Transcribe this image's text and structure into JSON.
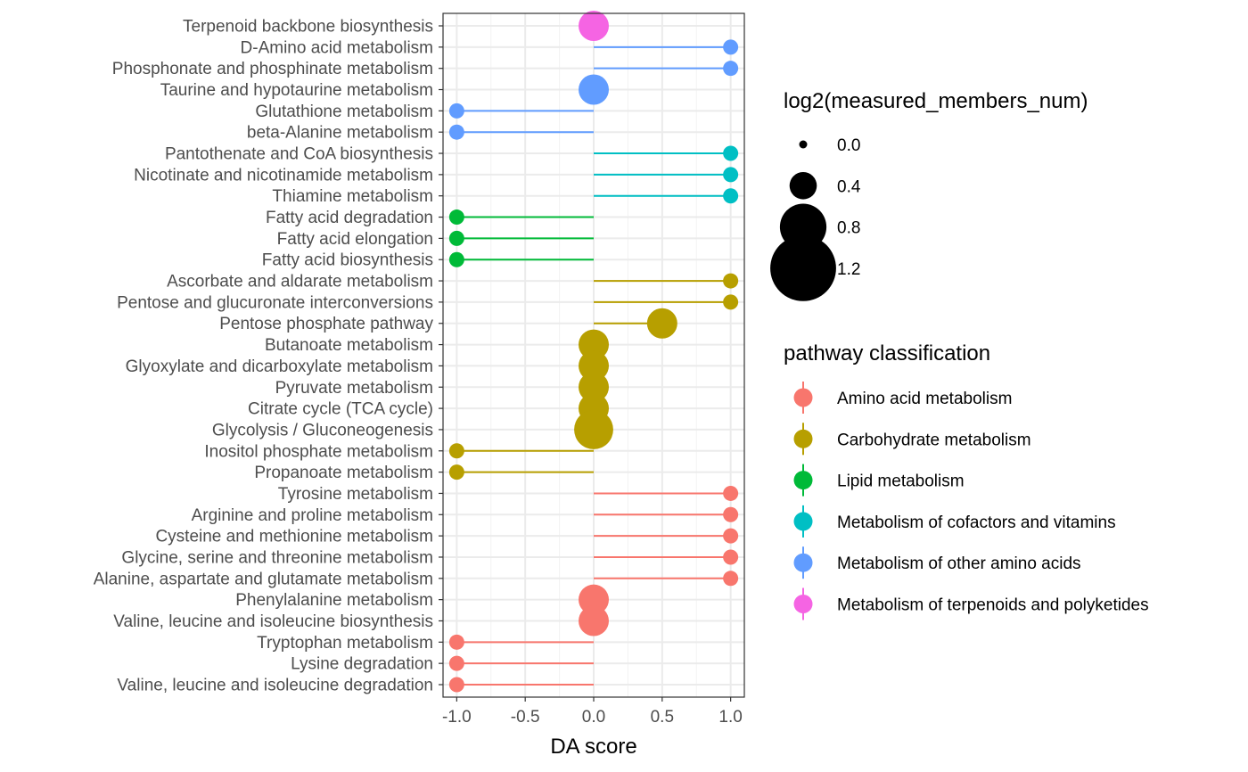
{
  "chart_data": {
    "type": "scatter",
    "subtype": "lollipop",
    "xlabel": "DA score",
    "ylabel": "",
    "xlim": [
      -1.1,
      1.1
    ],
    "x_ticks": [
      "-1.0",
      "-0.5",
      "0.0",
      "0.5",
      "1.0"
    ],
    "grid": true,
    "legend_position": "right",
    "categories": [
      "Terpenoid backbone biosynthesis",
      "D-Amino acid metabolism",
      "Phosphonate and phosphinate metabolism",
      "Taurine and hypotaurine metabolism",
      "Glutathione metabolism",
      "beta-Alanine metabolism",
      "Pantothenate and CoA biosynthesis",
      "Nicotinate and nicotinamide metabolism",
      "Thiamine metabolism",
      "Fatty acid degradation",
      "Fatty acid elongation",
      "Fatty acid biosynthesis",
      "Ascorbate and aldarate metabolism",
      "Pentose and glucuronate interconversions",
      "Pentose phosphate pathway",
      "Butanoate metabolism",
      "Glyoxylate and dicarboxylate metabolism",
      "Pyruvate metabolism",
      "Citrate cycle (TCA cycle)",
      "Glycolysis / Gluconeogenesis",
      "Inositol phosphate metabolism",
      "Propanoate metabolism",
      "Tyrosine metabolism",
      "Arginine and proline metabolism",
      "Cysteine and methionine metabolism",
      "Glycine, serine and threonine metabolism",
      "Alanine, aspartate and glutamate metabolism",
      "Phenylalanine metabolism",
      "Valine, leucine and isoleucine biosynthesis",
      "Tryptophan metabolism",
      "Lysine degradation",
      "Valine, leucine and isoleucine degradation"
    ],
    "points": [
      {
        "pathway": "Terpenoid backbone biosynthesis",
        "score": 0.0,
        "size": 1.0,
        "class": "Metabolism of terpenoids and polyketides"
      },
      {
        "pathway": "D-Amino acid metabolism",
        "score": 1.0,
        "size": 0.0,
        "class": "Metabolism of other amino acids"
      },
      {
        "pathway": "Phosphonate and phosphinate metabolism",
        "score": 1.0,
        "size": 0.0,
        "class": "Metabolism of other amino acids"
      },
      {
        "pathway": "Taurine and hypotaurine metabolism",
        "score": 0.0,
        "size": 1.0,
        "class": "Metabolism of other amino acids"
      },
      {
        "pathway": "Glutathione metabolism",
        "score": -1.0,
        "size": 0.0,
        "class": "Metabolism of other amino acids"
      },
      {
        "pathway": "beta-Alanine metabolism",
        "score": -1.0,
        "size": 0.0,
        "class": "Metabolism of other amino acids"
      },
      {
        "pathway": "Pantothenate and CoA biosynthesis",
        "score": 1.0,
        "size": 0.0,
        "class": "Metabolism of cofactors and vitamins"
      },
      {
        "pathway": "Nicotinate and nicotinamide metabolism",
        "score": 1.0,
        "size": 0.0,
        "class": "Metabolism of cofactors and vitamins"
      },
      {
        "pathway": "Thiamine metabolism",
        "score": 1.0,
        "size": 0.0,
        "class": "Metabolism of cofactors and vitamins"
      },
      {
        "pathway": "Fatty acid degradation",
        "score": -1.0,
        "size": 0.0,
        "class": "Lipid metabolism"
      },
      {
        "pathway": "Fatty acid elongation",
        "score": -1.0,
        "size": 0.0,
        "class": "Lipid metabolism"
      },
      {
        "pathway": "Fatty acid biosynthesis",
        "score": -1.0,
        "size": 0.0,
        "class": "Lipid metabolism"
      },
      {
        "pathway": "Ascorbate and aldarate metabolism",
        "score": 1.0,
        "size": 0.0,
        "class": "Carbohydrate metabolism"
      },
      {
        "pathway": "Pentose and glucuronate interconversions",
        "score": 1.0,
        "size": 0.0,
        "class": "Carbohydrate metabolism"
      },
      {
        "pathway": "Pentose phosphate pathway",
        "score": 0.5,
        "size": 1.0,
        "class": "Carbohydrate metabolism"
      },
      {
        "pathway": "Butanoate metabolism",
        "score": 0.0,
        "size": 1.0,
        "class": "Carbohydrate metabolism"
      },
      {
        "pathway": "Glyoxylate and dicarboxylate metabolism",
        "score": 0.0,
        "size": 1.0,
        "class": "Carbohydrate metabolism"
      },
      {
        "pathway": "Pyruvate metabolism",
        "score": 0.0,
        "size": 1.0,
        "class": "Carbohydrate metabolism"
      },
      {
        "pathway": "Citrate cycle (TCA cycle)",
        "score": 0.0,
        "size": 1.0,
        "class": "Carbohydrate metabolism"
      },
      {
        "pathway": "Glycolysis / Gluconeogenesis",
        "score": 0.0,
        "size": 1.58,
        "class": "Carbohydrate metabolism"
      },
      {
        "pathway": "Inositol phosphate metabolism",
        "score": -1.0,
        "size": 0.0,
        "class": "Carbohydrate metabolism"
      },
      {
        "pathway": "Propanoate metabolism",
        "score": -1.0,
        "size": 0.0,
        "class": "Carbohydrate metabolism"
      },
      {
        "pathway": "Tyrosine metabolism",
        "score": 1.0,
        "size": 0.0,
        "class": "Amino acid metabolism"
      },
      {
        "pathway": "Arginine and proline metabolism",
        "score": 1.0,
        "size": 0.0,
        "class": "Amino acid metabolism"
      },
      {
        "pathway": "Cysteine and methionine metabolism",
        "score": 1.0,
        "size": 0.0,
        "class": "Amino acid metabolism"
      },
      {
        "pathway": "Glycine, serine and threonine metabolism",
        "score": 1.0,
        "size": 0.0,
        "class": "Amino acid metabolism"
      },
      {
        "pathway": "Alanine, aspartate and glutamate metabolism",
        "score": 1.0,
        "size": 0.0,
        "class": "Amino acid metabolism"
      },
      {
        "pathway": "Phenylalanine metabolism",
        "score": 0.0,
        "size": 1.0,
        "class": "Amino acid metabolism"
      },
      {
        "pathway": "Valine, leucine and isoleucine biosynthesis",
        "score": 0.0,
        "size": 1.0,
        "class": "Amino acid metabolism"
      },
      {
        "pathway": "Tryptophan metabolism",
        "score": -1.0,
        "size": 0.0,
        "class": "Amino acid metabolism"
      },
      {
        "pathway": "Lysine degradation",
        "score": -1.0,
        "size": 0.0,
        "class": "Amino acid metabolism"
      },
      {
        "pathway": "Valine, leucine and isoleucine degradation",
        "score": -1.0,
        "size": 0.0,
        "class": "Amino acid metabolism"
      }
    ],
    "legend_size": {
      "title": "log2(measured_members_num)",
      "entries": [
        {
          "label": "0.0",
          "value": 0.0
        },
        {
          "label": "0.4",
          "value": 0.4
        },
        {
          "label": "0.8",
          "value": 0.8
        },
        {
          "label": "1.2",
          "value": 1.2
        }
      ]
    },
    "legend_color": {
      "title": "pathway classification",
      "entries": [
        {
          "label": "Amino acid metabolism",
          "color": "#F8766D"
        },
        {
          "label": "Carbohydrate metabolism",
          "color": "#B79F00"
        },
        {
          "label": "Lipid metabolism",
          "color": "#00BA38"
        },
        {
          "label": "Metabolism of cofactors and vitamins",
          "color": "#00BFC4"
        },
        {
          "label": "Metabolism of other amino acids",
          "color": "#619CFF"
        },
        {
          "label": "Metabolism of terpenoids and polyketides",
          "color": "#F564E3"
        }
      ]
    }
  }
}
